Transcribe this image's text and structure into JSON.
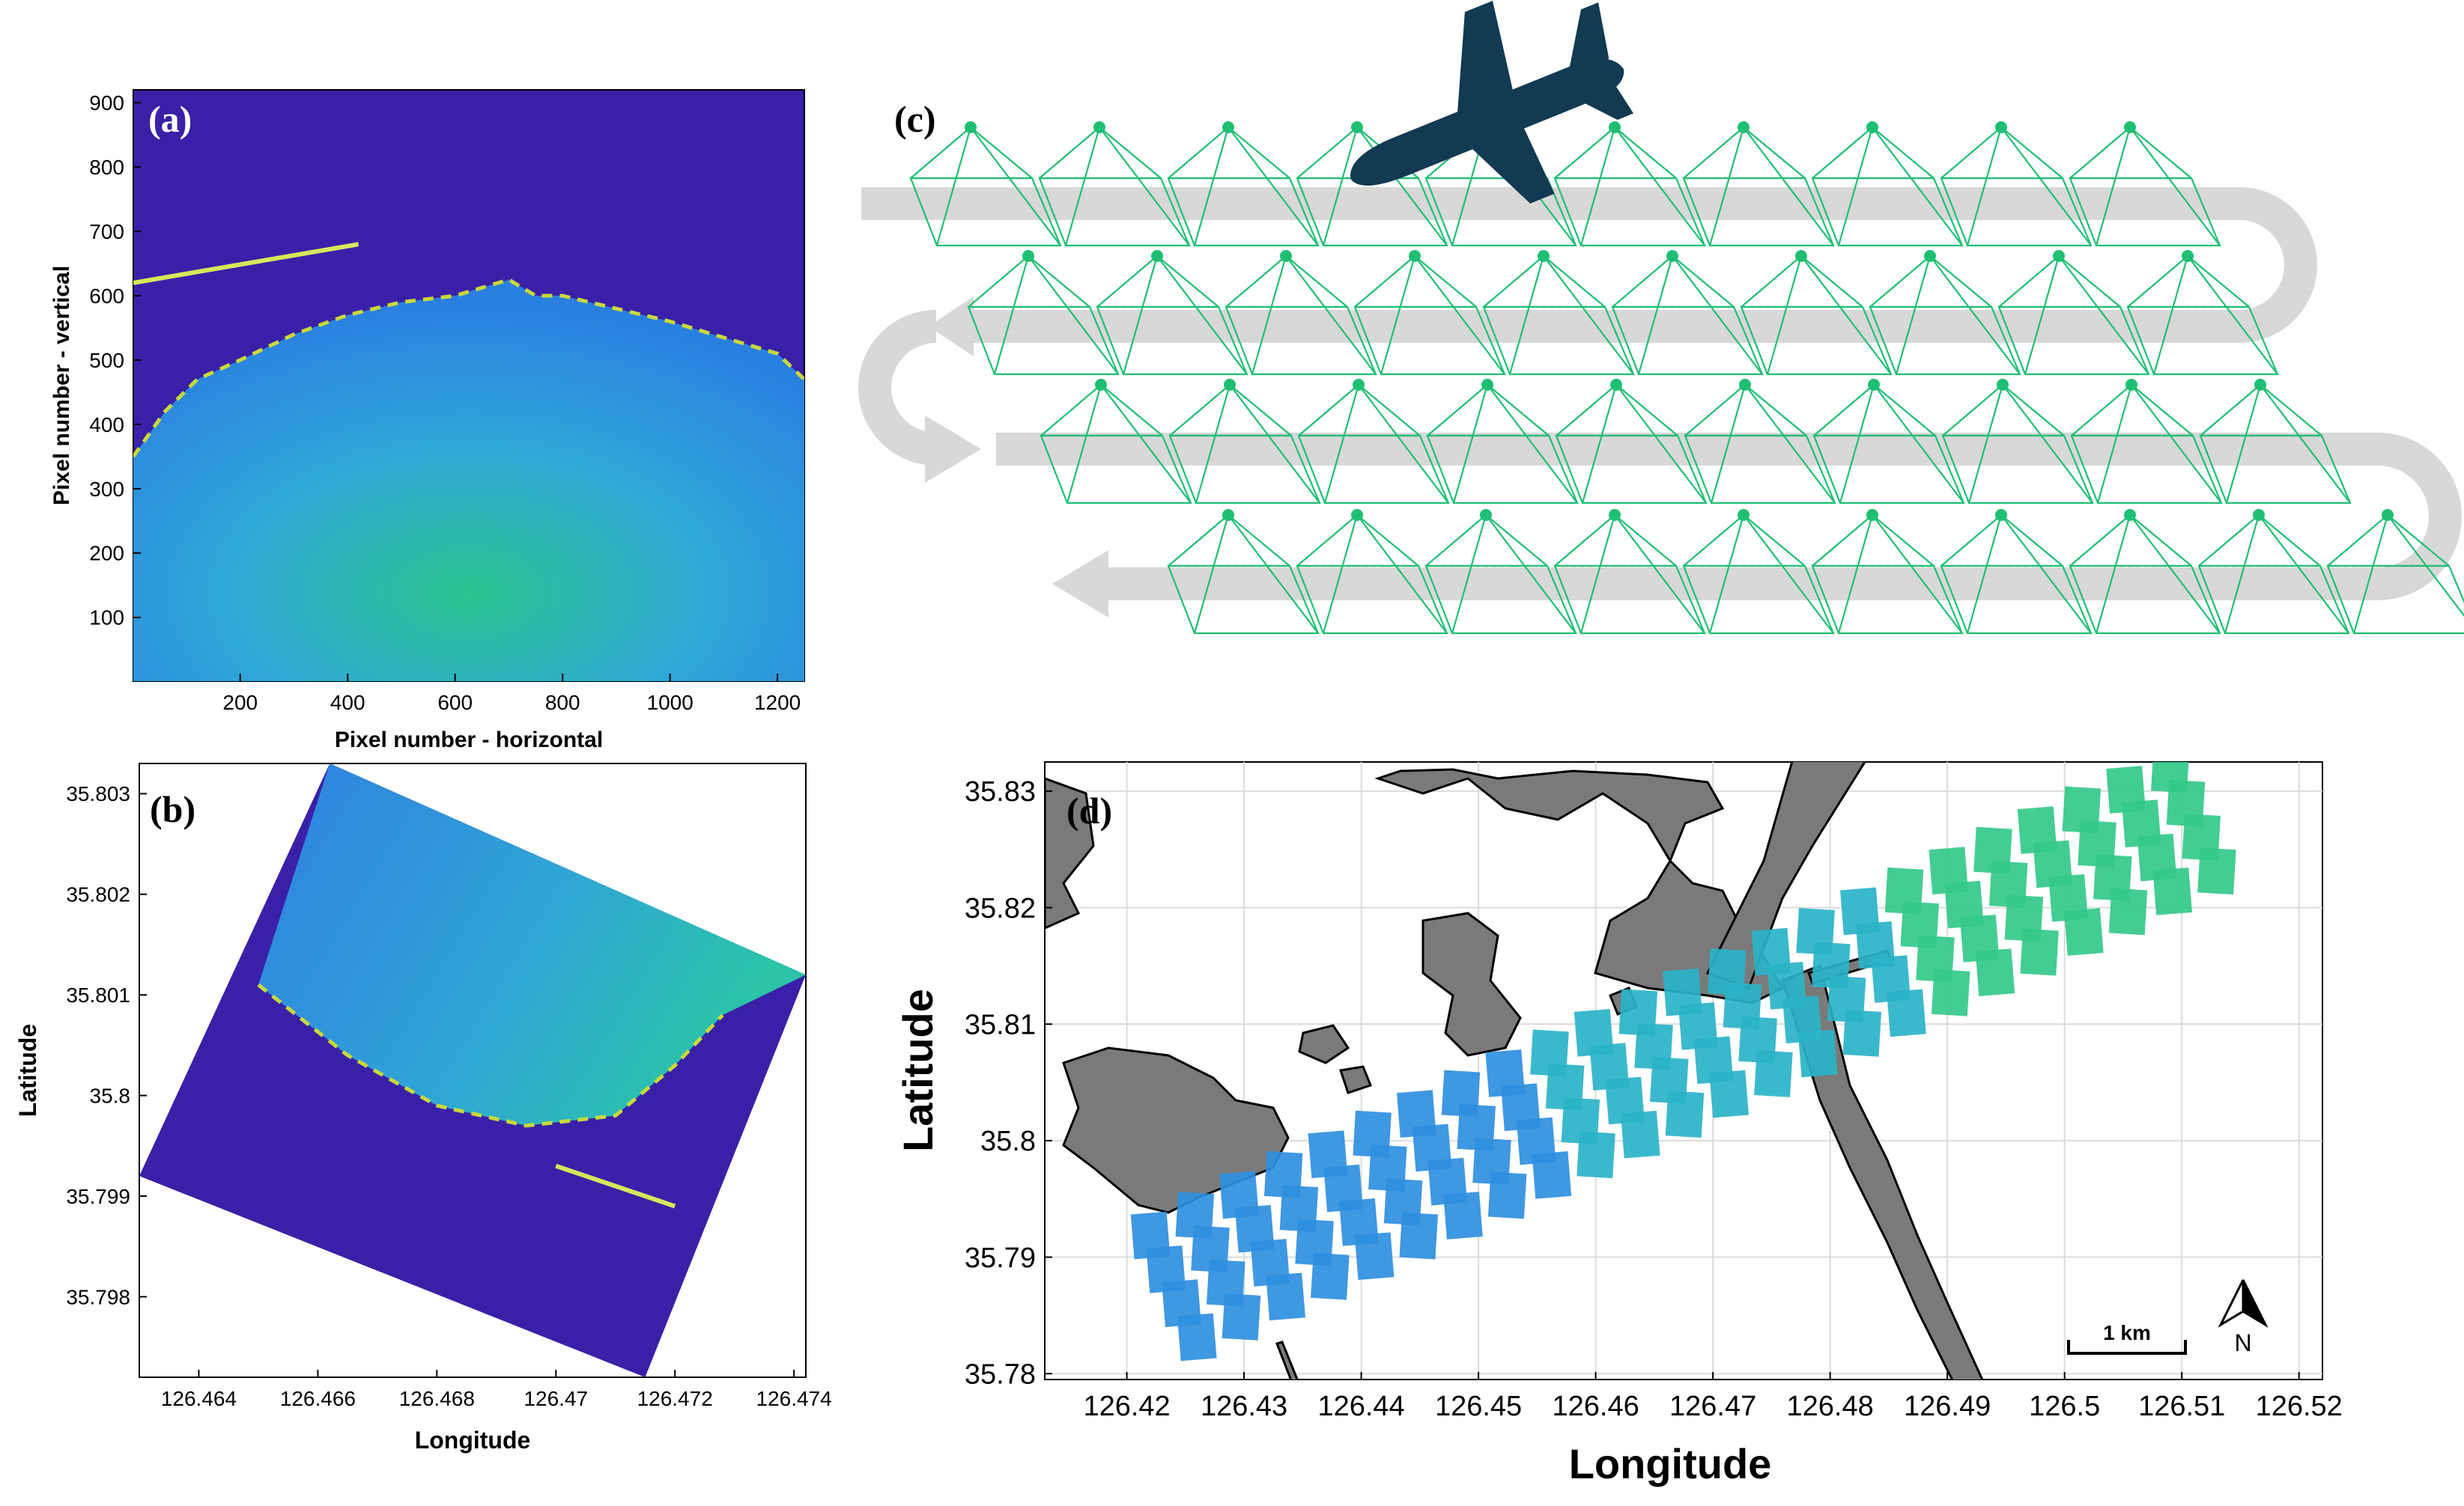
{
  "figure": {
    "colors": {
      "background_blue": "#3a20a8",
      "water_cyan": "#2f9fe0",
      "water_green": "#2bc48f",
      "flight_green": "#1fbf73",
      "path_gray": "#d8d8d8",
      "land_gray": "#7a7a7a",
      "plane": "#123a52"
    },
    "icons": [
      "airplane-icon",
      "north-arrow-icon"
    ]
  },
  "chart_data": [
    {
      "panel": "(a)",
      "type": "heatmap",
      "title": "",
      "xlabel": "Pixel number - horizontal",
      "ylabel": "Pixel number - vertical",
      "xlim": [
        1,
        1250
      ],
      "ylim": [
        1,
        920
      ],
      "xticks": [
        "200",
        "400",
        "600",
        "800",
        "1000",
        "1200"
      ],
      "xtick_values": [
        200,
        400,
        600,
        800,
        1000,
        1200
      ],
      "yticks": [
        "100",
        "200",
        "300",
        "400",
        "500",
        "600",
        "700",
        "800",
        "900"
      ],
      "ytick_values": [
        100,
        200,
        300,
        400,
        500,
        600,
        700,
        800,
        900
      ],
      "boundary": [
        [
          1,
          350
        ],
        [
          60,
          420
        ],
        [
          120,
          470
        ],
        [
          200,
          500
        ],
        [
          300,
          540
        ],
        [
          400,
          570
        ],
        [
          500,
          590
        ],
        [
          600,
          600
        ],
        [
          700,
          625
        ],
        [
          750,
          600
        ],
        [
          800,
          600
        ],
        [
          900,
          580
        ],
        [
          1000,
          560
        ],
        [
          1100,
          535
        ],
        [
          1200,
          510
        ],
        [
          1250,
          470
        ]
      ],
      "streak": [
        [
          1,
          620
        ],
        [
          420,
          680
        ]
      ]
    },
    {
      "panel": "(b)",
      "type": "heatmap",
      "title": "",
      "xlabel": "Longitude",
      "ylabel": "Latitude",
      "xlim": [
        126.463,
        126.4742
      ],
      "ylim": [
        35.7972,
        35.8033
      ],
      "xticks": [
        "126.464",
        "126.466",
        "126.468",
        "126.47",
        "126.472",
        "126.474"
      ],
      "xtick_values": [
        126.464,
        126.466,
        126.468,
        126.47,
        126.472,
        126.474
      ],
      "yticks": [
        "35.803",
        "35.802",
        "35.801",
        "35.8",
        "35.799",
        "35.798"
      ],
      "ytick_values": [
        35.803,
        35.802,
        35.801,
        35.8,
        35.799,
        35.798
      ],
      "footprint": [
        [
          126.4662,
          35.8033
        ],
        [
          126.4742,
          35.8012
        ],
        [
          126.4715,
          35.7972
        ],
        [
          126.463,
          35.7992
        ]
      ],
      "boundary": [
        [
          126.465,
          35.8011
        ],
        [
          126.4665,
          35.8004
        ],
        [
          126.468,
          35.7999
        ],
        [
          126.4695,
          35.7997
        ],
        [
          126.471,
          35.7998
        ],
        [
          126.472,
          35.8003
        ],
        [
          126.4728,
          35.8008
        ]
      ],
      "streak": [
        [
          126.47,
          35.7993
        ],
        [
          126.472,
          35.7989
        ]
      ]
    },
    {
      "panel": "(c)",
      "type": "diagram",
      "title": "",
      "rows": 4,
      "footprints_per_row": 10
    },
    {
      "panel": "(d)",
      "type": "map",
      "title": "",
      "xlabel": "Longitude",
      "ylabel": "Latitude",
      "xlim": [
        126.413,
        126.522
      ],
      "ylim": [
        35.7795,
        35.8325
      ],
      "xticks": [
        "126.42",
        "126.43",
        "126.44",
        "126.45",
        "126.46",
        "126.47",
        "126.48",
        "126.49",
        "126.5",
        "126.51",
        "126.52"
      ],
      "xtick_values": [
        126.42,
        126.43,
        126.44,
        126.45,
        126.46,
        126.47,
        126.48,
        126.49,
        126.5,
        126.51,
        126.52
      ],
      "yticks": [
        "35.83",
        "35.82",
        "35.81",
        "35.8",
        "35.79",
        "35.78"
      ],
      "ytick_values": [
        35.83,
        35.82,
        35.81,
        35.8,
        35.79,
        35.78
      ],
      "scale_bar": "1 km",
      "north_label": "N",
      "swath_start": [
        126.424,
        35.7875
      ],
      "swath_end": [
        126.511,
        35.8275
      ],
      "swath_rows": 4,
      "swath_row_spacing": 0.0032,
      "footprints_per_row": 24
    }
  ]
}
